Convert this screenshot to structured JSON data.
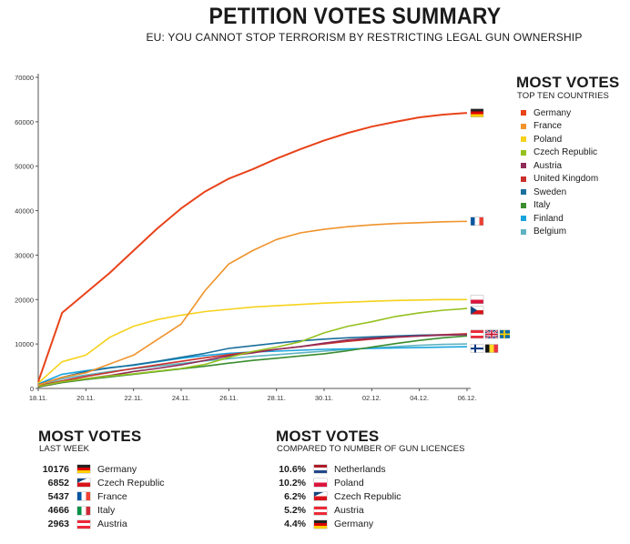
{
  "header": {
    "title": "PETITION VOTES SUMMARY",
    "subtitle": "EU: YOU CANNOT STOP TERRORISM BY RESTRICTING LEGAL GUN OWNERSHIP"
  },
  "chart_data": {
    "type": "line",
    "x": [
      "18.11.",
      "19.11.",
      "20.11.",
      "21.11.",
      "22.11.",
      "23.11.",
      "24.11.",
      "25.11.",
      "26.11.",
      "27.11.",
      "28.11.",
      "29.11.",
      "30.11.",
      "01.12.",
      "02.12.",
      "03.12.",
      "04.12.",
      "05.12.",
      "06.12."
    ],
    "x_tick_labels": [
      "18.11.",
      "20.11.",
      "22.11.",
      "24.11.",
      "26.11.",
      "28.11.",
      "30.11.",
      "02.12.",
      "04.12.",
      "06.12."
    ],
    "ylim": [
      0,
      70000
    ],
    "y_ticks": [
      0,
      10000,
      20000,
      30000,
      40000,
      50000,
      60000,
      70000
    ],
    "grid": false,
    "series": [
      {
        "name": "Germany",
        "color": "#e8431a",
        "values": [
          1500,
          17000,
          21500,
          26000,
          31000,
          36000,
          40500,
          44300,
          47200,
          49300,
          51700,
          53800,
          55800,
          57500,
          58900,
          60000,
          61000,
          61600,
          62000
        ]
      },
      {
        "name": "France",
        "color": "#f0932b",
        "values": [
          800,
          2500,
          3500,
          5500,
          7500,
          11000,
          14500,
          22000,
          28000,
          31000,
          33500,
          35000,
          35800,
          36400,
          36800,
          37100,
          37300,
          37500,
          37600
        ]
      },
      {
        "name": "Poland",
        "color": "#f6d21c",
        "values": [
          1200,
          6000,
          7500,
          11500,
          14000,
          15500,
          16500,
          17300,
          17800,
          18300,
          18600,
          18900,
          19200,
          19400,
          19600,
          19800,
          19900,
          20000,
          20000
        ]
      },
      {
        "name": "Czech Republic",
        "color": "#95c11f",
        "values": [
          500,
          1500,
          2200,
          2800,
          3300,
          3900,
          4500,
          5400,
          7000,
          8300,
          9300,
          10500,
          12500,
          14000,
          15000,
          16200,
          17000,
          17600,
          18000
        ]
      },
      {
        "name": "Austria",
        "color": "#8e2b57",
        "values": [
          400,
          1500,
          2200,
          2900,
          3800,
          4500,
          5300,
          6300,
          7300,
          8000,
          8800,
          9400,
          10200,
          10900,
          11300,
          11600,
          11800,
          12000,
          12100
        ]
      },
      {
        "name": "United Kingdom",
        "color": "#c9302c",
        "values": [
          600,
          1700,
          2700,
          3600,
          4500,
          5300,
          6100,
          6900,
          7600,
          8200,
          8800,
          9400,
          10000,
          10600,
          11100,
          11500,
          11800,
          12100,
          12300
        ]
      },
      {
        "name": "Sweden",
        "color": "#1a6f9c",
        "values": [
          900,
          2500,
          3800,
          4600,
          5300,
          6100,
          7000,
          7900,
          9000,
          9600,
          10200,
          10700,
          11100,
          11400,
          11600,
          11800,
          12000,
          12100,
          12200
        ]
      },
      {
        "name": "Italy",
        "color": "#3a8c2e",
        "values": [
          300,
          1300,
          2000,
          2600,
          3200,
          3800,
          4400,
          5000,
          5700,
          6300,
          6800,
          7300,
          7800,
          8500,
          9300,
          10100,
          10800,
          11400,
          11800
        ]
      },
      {
        "name": "Finland",
        "color": "#18a4de",
        "values": [
          1000,
          3200,
          4000,
          4700,
          5200,
          6000,
          6800,
          7400,
          7900,
          8200,
          8400,
          8600,
          8800,
          8900,
          9000,
          9100,
          9200,
          9300,
          9400
        ]
      },
      {
        "name": "Belgium",
        "color": "#5fb3c1",
        "values": [
          700,
          2200,
          3000,
          3800,
          4400,
          5000,
          5600,
          6200,
          6700,
          7200,
          7600,
          8000,
          8400,
          8800,
          9100,
          9400,
          9700,
          9900,
          10000
        ]
      }
    ]
  },
  "legend": {
    "title": "MOST VOTES",
    "subtitle": "TOP TEN COUNTRIES",
    "items": [
      {
        "label": "Germany",
        "color": "#e8431a"
      },
      {
        "label": "France",
        "color": "#f0932b"
      },
      {
        "label": "Poland",
        "color": "#f6d21c"
      },
      {
        "label": "Czech Republic",
        "color": "#95c11f"
      },
      {
        "label": "Austria",
        "color": "#8e2b57"
      },
      {
        "label": "United Kingdom",
        "color": "#c9302c"
      },
      {
        "label": "Sweden",
        "color": "#1a6f9c"
      },
      {
        "label": "Italy",
        "color": "#3a8c2e"
      },
      {
        "label": "Finland",
        "color": "#18a4de"
      },
      {
        "label": "Belgium",
        "color": "#5fb3c1"
      }
    ]
  },
  "flag_markers": [
    "germany-flag",
    "france-flag",
    "poland-flag",
    "czech-republic-flag",
    "austria-flag",
    "united-kingdom-flag",
    "sweden-flag",
    "italy-flag",
    "finland-flag",
    "belgium-flag"
  ],
  "last_week": {
    "title": "MOST VOTES",
    "subtitle": "LAST WEEK",
    "rows": [
      {
        "value": "10176",
        "country": "Germany",
        "flag": "de"
      },
      {
        "value": "6852",
        "country": "Czech Republic",
        "flag": "cz"
      },
      {
        "value": "5437",
        "country": "France",
        "flag": "fr"
      },
      {
        "value": "4666",
        "country": "Italy",
        "flag": "it"
      },
      {
        "value": "2963",
        "country": "Austria",
        "flag": "at"
      }
    ]
  },
  "gun_licences": {
    "title": "MOST VOTES",
    "subtitle": "COMPARED TO NUMBER OF GUN LICENCES",
    "rows": [
      {
        "value": "10.6%",
        "country": "Netherlands",
        "flag": "nl"
      },
      {
        "value": "10.2%",
        "country": "Poland",
        "flag": "pl"
      },
      {
        "value": "6.2%",
        "country": "Czech Republic",
        "flag": "cz"
      },
      {
        "value": "5.2%",
        "country": "Austria",
        "flag": "at"
      },
      {
        "value": "4.4%",
        "country": "Germany",
        "flag": "de"
      }
    ]
  }
}
